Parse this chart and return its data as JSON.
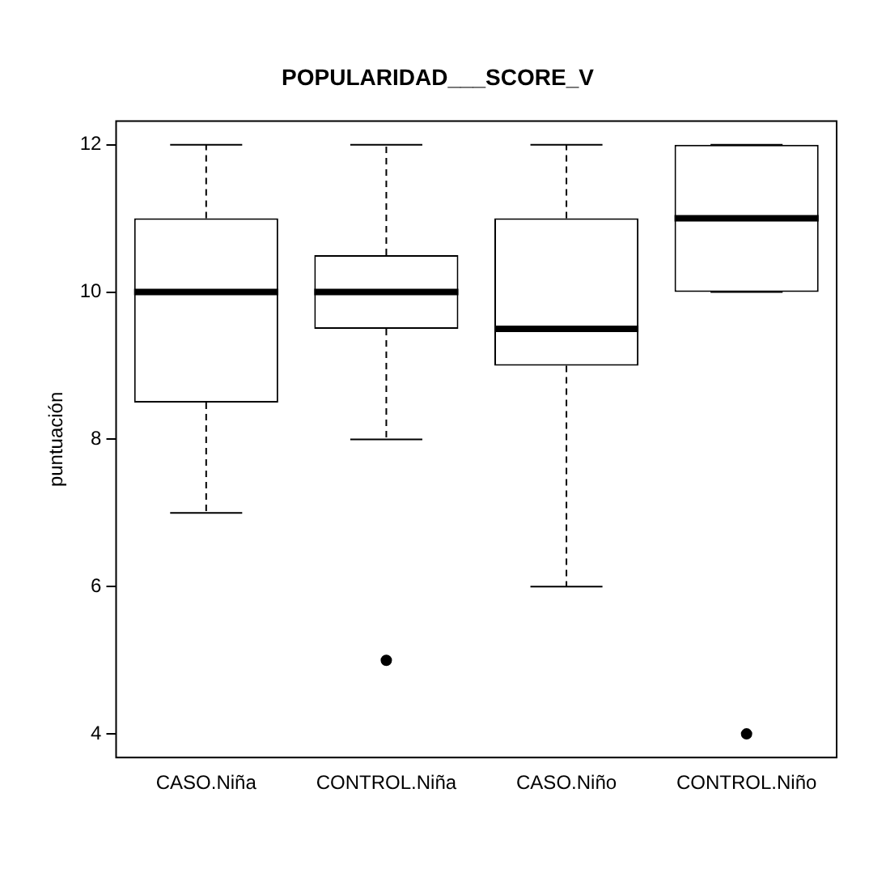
{
  "chart_data": {
    "type": "box",
    "title": "POPULARIDAD___SCORE_V",
    "ylabel": "puntuación",
    "categories": [
      "CASO.Niña",
      "CONTROL.Niña",
      "CASO.Niño",
      "CONTROL.Niño"
    ],
    "color": "#000000",
    "boxes": [
      {
        "low": 7,
        "q1": 8.5,
        "median": 10,
        "q3": 11,
        "high": 12
      },
      {
        "low": 8,
        "q1": 9.5,
        "median": 10,
        "q3": 10.5,
        "high": 12,
        "outliers": [
          5
        ]
      },
      {
        "low": 6,
        "q1": 9,
        "median": 9.5,
        "q3": 11,
        "high": 12
      },
      {
        "low": 10,
        "q1": 10,
        "median": 11,
        "q3": 12,
        "high": 12,
        "outliers": [
          4
        ]
      }
    ],
    "ylim": [
      3.68,
      12.32
    ],
    "yticks": [
      4,
      6,
      8,
      10,
      12
    ],
    "grid": false,
    "legend": false
  }
}
